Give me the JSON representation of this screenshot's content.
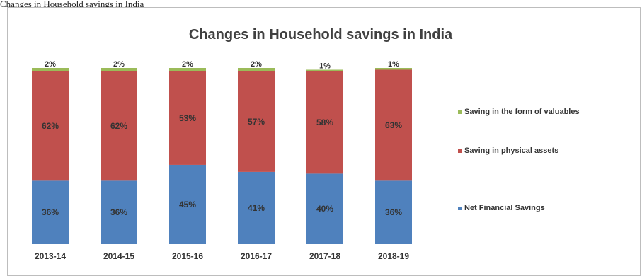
{
  "caption": "Changes in Household savings in India",
  "chart_data": {
    "type": "bar",
    "stacked": true,
    "percent_stacked": true,
    "title": "Changes in Household savings in India",
    "categories": [
      "2013-14",
      "2014-15",
      "2015-16",
      "2016-17",
      "2017-18",
      "2018-19"
    ],
    "series": [
      {
        "name": "Net Financial Savings",
        "values": [
          36,
          36,
          45,
          41,
          40,
          36
        ],
        "labels": [
          "36%",
          "36%",
          "45%",
          "41%",
          "40%",
          "36%"
        ],
        "color": "#4f81bd"
      },
      {
        "name": "Saving in physical assets",
        "values": [
          62,
          62,
          53,
          57,
          58,
          63
        ],
        "labels": [
          "62%",
          "62%",
          "53%",
          "57%",
          "58%",
          "63%"
        ],
        "color": "#c0504d"
      },
      {
        "name": "Saving in the form of valuables",
        "values": [
          2,
          2,
          2,
          2,
          1,
          1
        ],
        "labels": [
          "2%",
          "2%",
          "2%",
          "2%",
          "1%",
          "1%"
        ],
        "color": "#9bbb59"
      }
    ],
    "ylim": [
      0,
      100
    ],
    "legend_position": "right",
    "grid": false
  }
}
